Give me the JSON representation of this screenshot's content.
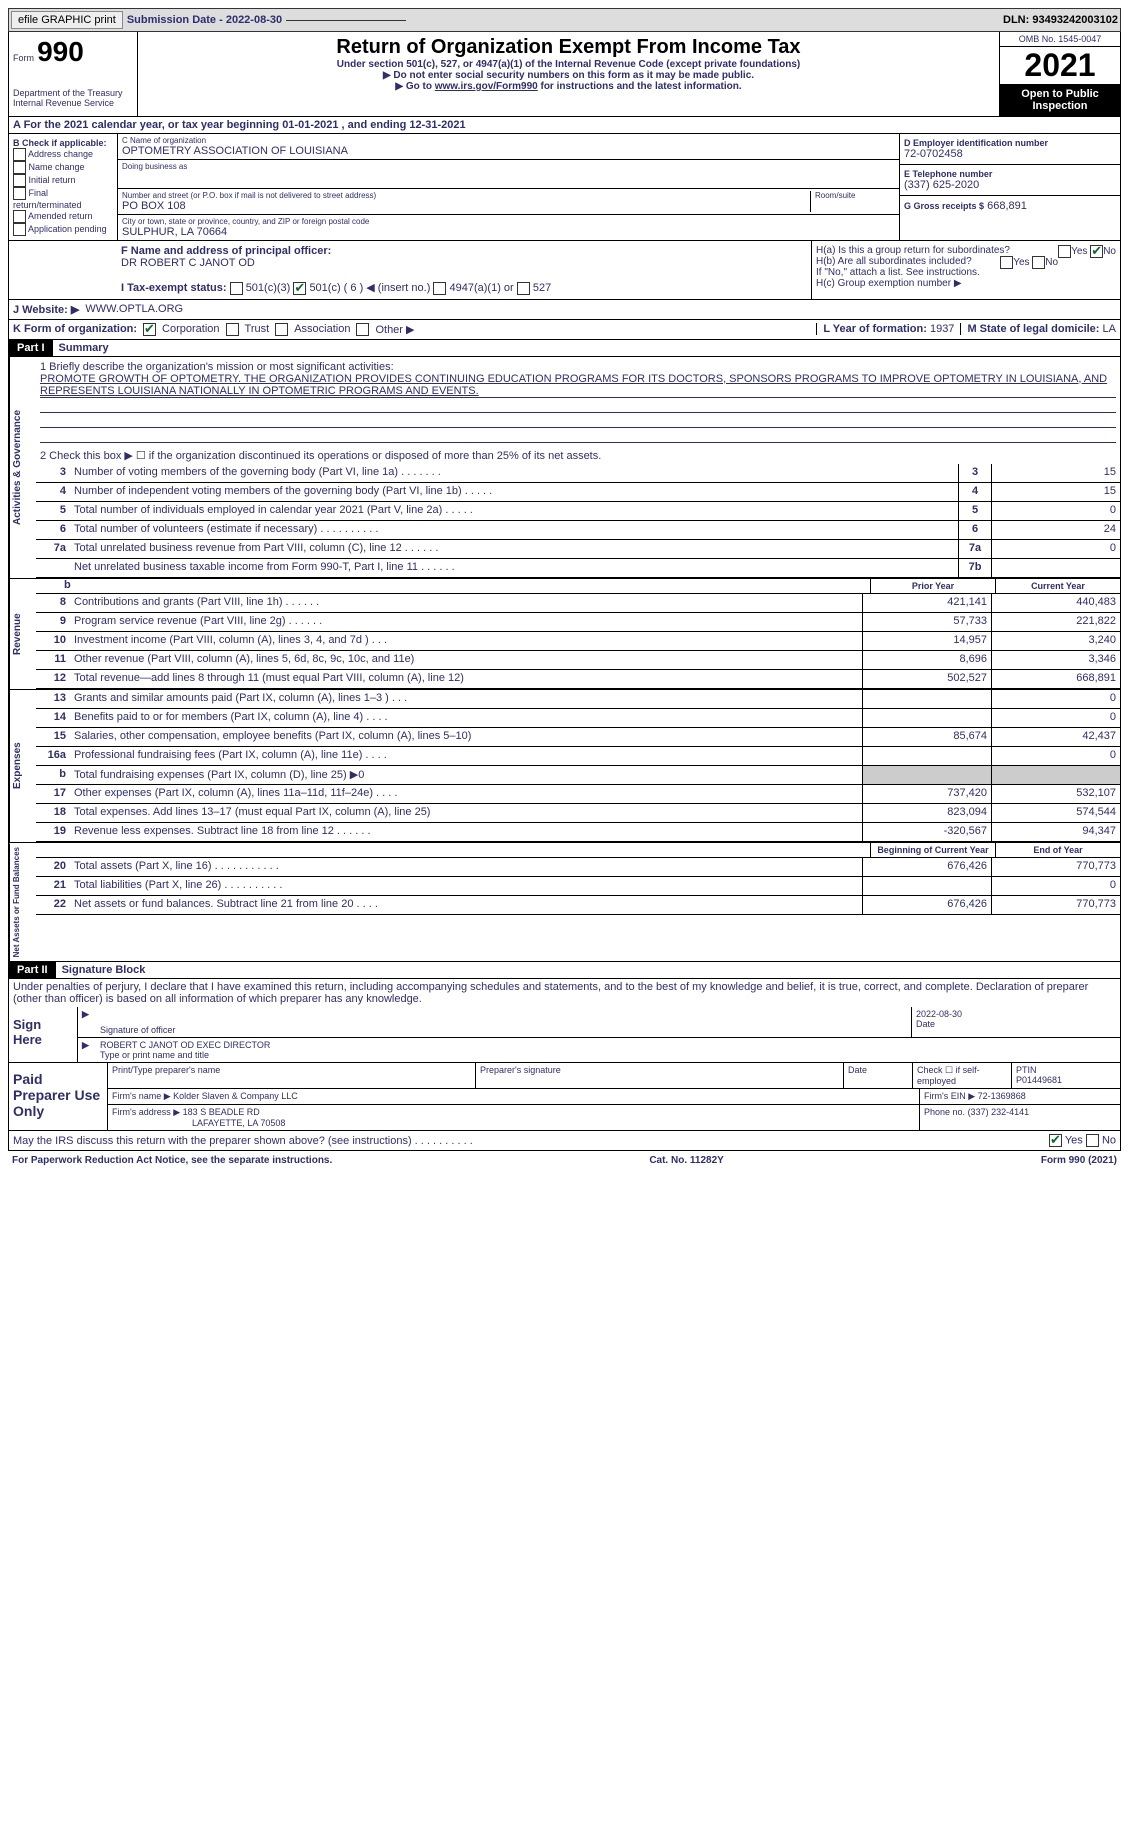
{
  "topbar": {
    "efile": "efile GRAPHIC print",
    "sub_date_label": "Submission Date - 2022-08-30",
    "dln": "DLN: 93493242003102"
  },
  "header": {
    "form_label": "Form",
    "form_num": "990",
    "dept": "Department of the Treasury\nInternal Revenue Service",
    "title": "Return of Organization Exempt From Income Tax",
    "subtitle": "Under section 501(c), 527, or 4947(a)(1) of the Internal Revenue Code (except private foundations)",
    "note1": "▶ Do not enter social security numbers on this form as it may be made public.",
    "note2_pre": "▶ Go to ",
    "note2_link": "www.irs.gov/Form990",
    "note2_post": " for instructions and the latest information.",
    "omb": "OMB No. 1545-0047",
    "year": "2021",
    "inspection": "Open to Public Inspection"
  },
  "lineA": "A For the 2021 calendar year, or tax year beginning 01-01-2021    , and ending 12-31-2021",
  "boxB": {
    "title": "B Check if applicable:",
    "opts": [
      "Address change",
      "Name change",
      "Initial return",
      "Final return/terminated",
      "Amended return",
      "Application pending"
    ]
  },
  "boxC": {
    "name_label": "C Name of organization",
    "name": "OPTOMETRY ASSOCIATION OF LOUISIANA",
    "dba_label": "Doing business as",
    "addr_label": "Number and street (or P.O. box if mail is not delivered to street address)",
    "room_label": "Room/suite",
    "addr": "PO BOX 108",
    "city_label": "City or town, state or province, country, and ZIP or foreign postal code",
    "city": "SULPHUR, LA  70664"
  },
  "boxD": {
    "label": "D Employer identification number",
    "val": "72-0702458"
  },
  "boxE": {
    "label": "E Telephone number",
    "val": "(337) 625-2020"
  },
  "boxG": {
    "label": "G Gross receipts $",
    "val": "668,891"
  },
  "boxF": {
    "label": "F  Name and address of principal officer:",
    "val": "DR ROBERT C JANOT OD"
  },
  "boxH": {
    "a": "H(a)  Is this a group return for subordinates?",
    "b": "H(b)  Are all subordinates included?",
    "note": "If \"No,\" attach a list. See instructions.",
    "c": "H(c)  Group exemption number ▶"
  },
  "lineI": {
    "label": "I    Tax-exempt status:",
    "opts": [
      "501(c)(3)",
      "501(c) ( 6 ) ◀ (insert no.)",
      "4947(a)(1) or",
      "527"
    ]
  },
  "lineJ": {
    "label": "J   Website: ▶",
    "val": "WWW.OPTLA.ORG"
  },
  "lineK": {
    "label": "K Form of organization:",
    "opts": [
      "Corporation",
      "Trust",
      "Association",
      "Other ▶"
    ]
  },
  "lineL": {
    "label": "L Year of formation:",
    "val": "1937"
  },
  "lineM": {
    "label": "M State of legal domicile:",
    "val": "LA"
  },
  "part1": {
    "tag": "Part I",
    "title": "Summary"
  },
  "section_labels": {
    "gov": "Activities & Governance",
    "rev": "Revenue",
    "exp": "Expenses",
    "net": "Net Assets or Fund Balances"
  },
  "line1": {
    "label": "1   Briefly describe the organization's mission or most significant activities:",
    "text": "PROMOTE GROWTH OF OPTOMETRY. THE ORGANIZATION PROVIDES CONTINUING EDUCATION PROGRAMS FOR ITS DOCTORS, SPONSORS PROGRAMS TO IMPROVE OPTOMETRY IN LOUISIANA, AND REPRESENTS LOUISIANA NATIONALLY IN OPTOMETRIC PROGRAMS AND EVENTS."
  },
  "line2": "2    Check this box ▶ ☐ if the organization discontinued its operations or disposed of more than 25% of its net assets.",
  "rows_gov": [
    {
      "n": "3",
      "d": "Number of voting members of the governing body (Part VI, line 1a)   .   .   .   .   .   .   .",
      "b": "3",
      "v": "15"
    },
    {
      "n": "4",
      "d": "Number of independent voting members of the governing body (Part VI, line 1b)  .   .   .   .   .",
      "b": "4",
      "v": "15"
    },
    {
      "n": "5",
      "d": "Total number of individuals employed in calendar year 2021 (Part V, line 2a)  .   .   .   .   .",
      "b": "5",
      "v": "0"
    },
    {
      "n": "6",
      "d": "Total number of volunteers (estimate if necessary)    .   .   .   .   .   .   .   .   .   .",
      "b": "6",
      "v": "24"
    },
    {
      "n": "7a",
      "d": "Total unrelated business revenue from Part VIII, column (C), line 12   .   .   .   .   .   .",
      "b": "7a",
      "v": "0"
    },
    {
      "n": "",
      "d": "Net unrelated business taxable income from Form 990-T, Part I, line 11  .   .   .   .   .   .",
      "b": "7b",
      "v": ""
    }
  ],
  "colheads": {
    "prior": "Prior Year",
    "current": "Current Year"
  },
  "rows_rev": [
    {
      "n": "8",
      "d": "Contributions and grants (Part VIII, line 1h)   .   .   .   .   .   .",
      "p": "421,141",
      "c": "440,483"
    },
    {
      "n": "9",
      "d": "Program service revenue (Part VIII, line 2g)  .   .   .   .   .   .",
      "p": "57,733",
      "c": "221,822"
    },
    {
      "n": "10",
      "d": "Investment income (Part VIII, column (A), lines 3, 4, and 7d )  .   .   .",
      "p": "14,957",
      "c": "3,240"
    },
    {
      "n": "11",
      "d": "Other revenue (Part VIII, column (A), lines 5, 6d, 8c, 9c, 10c, and 11e)",
      "p": "8,696",
      "c": "3,346"
    },
    {
      "n": "12",
      "d": "Total revenue—add lines 8 through 11 (must equal Part VIII, column (A), line 12)",
      "p": "502,527",
      "c": "668,891"
    }
  ],
  "rows_exp": [
    {
      "n": "13",
      "d": "Grants and similar amounts paid (Part IX, column (A), lines 1–3 )  .   .   .",
      "p": "",
      "c": "0"
    },
    {
      "n": "14",
      "d": "Benefits paid to or for members (Part IX, column (A), line 4)  .   .   .   .",
      "p": "",
      "c": "0"
    },
    {
      "n": "15",
      "d": "Salaries, other compensation, employee benefits (Part IX, column (A), lines 5–10)",
      "p": "85,674",
      "c": "42,437"
    },
    {
      "n": "16a",
      "d": "Professional fundraising fees (Part IX, column (A), line 11e)  .   .   .   .",
      "p": "",
      "c": "0"
    },
    {
      "n": "b",
      "d": "Total fundraising expenses (Part IX, column (D), line 25) ▶0",
      "p": "shade",
      "c": "shade"
    },
    {
      "n": "17",
      "d": "Other expenses (Part IX, column (A), lines 11a–11d, 11f–24e)  .   .   .   .",
      "p": "737,420",
      "c": "532,107"
    },
    {
      "n": "18",
      "d": "Total expenses. Add lines 13–17 (must equal Part IX, column (A), line 25)",
      "p": "823,094",
      "c": "574,544"
    },
    {
      "n": "19",
      "d": "Revenue less expenses. Subtract line 18 from line 12  .   .   .   .   .   .",
      "p": "-320,567",
      "c": "94,347"
    }
  ],
  "colheads2": {
    "begin": "Beginning of Current Year",
    "end": "End of Year"
  },
  "rows_net": [
    {
      "n": "20",
      "d": "Total assets (Part X, line 16)  .   .   .   .   .   .   .   .   .   .   .",
      "p": "676,426",
      "c": "770,773"
    },
    {
      "n": "21",
      "d": "Total liabilities (Part X, line 26)  .   .   .   .   .   .   .   .   .   .",
      "p": "",
      "c": "0"
    },
    {
      "n": "22",
      "d": "Net assets or fund balances. Subtract line 21 from line 20  .   .   .   .",
      "p": "676,426",
      "c": "770,773"
    }
  ],
  "part2": {
    "tag": "Part II",
    "title": "Signature Block"
  },
  "sig_decl": "Under penalties of perjury, I declare that I have examined this return, including accompanying schedules and statements, and to the best of my knowledge and belief, it is true, correct, and complete. Declaration of preparer (other than officer) is based on all information of which preparer has any knowledge.",
  "sign": {
    "here": "Sign Here",
    "sig_label": "Signature of officer",
    "date": "2022-08-30",
    "name": "ROBERT C JANOT OD  EXEC DIRECTOR",
    "name_label": "Type or print name and title"
  },
  "prep": {
    "left": "Paid Preparer Use Only",
    "h1": "Print/Type preparer's name",
    "h2": "Preparer's signature",
    "h3": "Date",
    "h4": "Check ☐ if self-employed",
    "h5_label": "PTIN",
    "h5": "P01449681",
    "firm_label": "Firm's name    ▶",
    "firm": "Kolder Slaven & Company LLC",
    "ein_label": "Firm's EIN ▶",
    "ein": "72-1369868",
    "addr_label": "Firm's address ▶",
    "addr1": "183 S BEADLE RD",
    "addr2": "LAFAYETTE, LA   70508",
    "phone_label": "Phone no.",
    "phone": "(337) 232-4141"
  },
  "may_discuss": "May the IRS discuss this return with the preparer shown above? (see instructions)  .   .   .   .   .   .   .   .   .   .",
  "footer": {
    "left": "For Paperwork Reduction Act Notice, see the separate instructions.",
    "mid": "Cat. No. 11282Y",
    "right": "Form 990 (2021)"
  },
  "yes": "Yes",
  "no": "No"
}
